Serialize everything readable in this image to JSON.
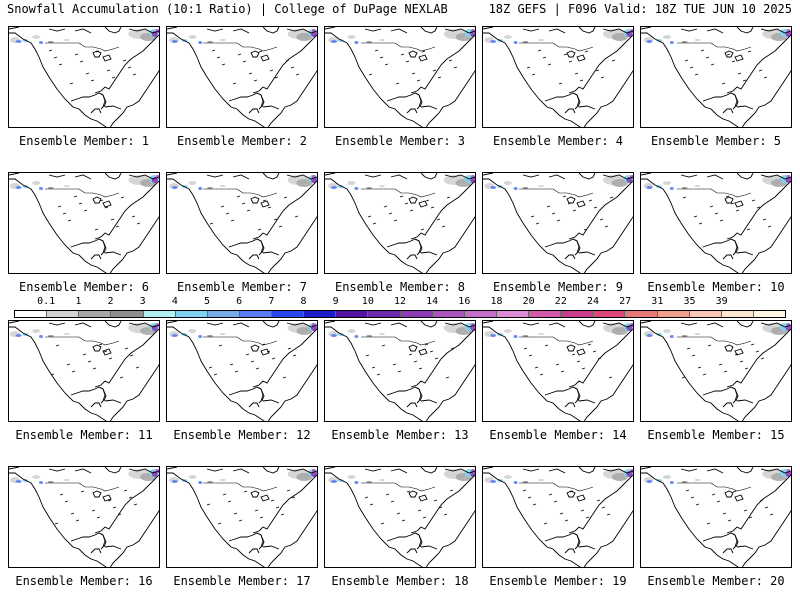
{
  "header": {
    "left": "Snowfall Accumulation (10:1 Ratio) | College of DuPage NEXLAB",
    "right": "18Z GEFS | F096 Valid: 18Z TUE JUN 10 2025"
  },
  "legend": {
    "ticks": [
      "0.1",
      "1",
      "2",
      "3",
      "4",
      "5",
      "6",
      "7",
      "8",
      "9",
      "10",
      "12",
      "14",
      "16",
      "18",
      "20",
      "22",
      "24",
      "27",
      "31",
      "35",
      "39"
    ],
    "colors": [
      "#ffffff",
      "#d2d2d2",
      "#a8a8a8",
      "#8e8e8e",
      "#b4f0f0",
      "#7ed3f0",
      "#78aaea",
      "#5a7ef0",
      "#2846f0",
      "#1e1ec8",
      "#5014a0",
      "#6e28aa",
      "#8c3cb4",
      "#aa55be",
      "#c46ecc",
      "#dc8cd8",
      "#d25aaa",
      "#c83c8c",
      "#dc4678",
      "#e87878",
      "#f0a08c",
      "#f8c8b4",
      "#fde6d2",
      "#fff5e6"
    ]
  },
  "panels": [
    {
      "label": "Ensemble Member: 1"
    },
    {
      "label": "Ensemble Member: 2"
    },
    {
      "label": "Ensemble Member: 3"
    },
    {
      "label": "Ensemble Member: 4"
    },
    {
      "label": "Ensemble Member: 5"
    },
    {
      "label": "Ensemble Member: 6"
    },
    {
      "label": "Ensemble Member: 7"
    },
    {
      "label": "Ensemble Member: 8"
    },
    {
      "label": "Ensemble Member: 9"
    },
    {
      "label": "Ensemble Member: 10"
    },
    {
      "label": "Ensemble Member: 11"
    },
    {
      "label": "Ensemble Member: 12"
    },
    {
      "label": "Ensemble Member: 13"
    },
    {
      "label": "Ensemble Member: 14"
    },
    {
      "label": "Ensemble Member: 15"
    },
    {
      "label": "Ensemble Member: 16"
    },
    {
      "label": "Ensemble Member: 17"
    },
    {
      "label": "Ensemble Member: 18"
    },
    {
      "label": "Ensemble Member: 19"
    },
    {
      "label": "Ensemble Member: 20"
    }
  ]
}
